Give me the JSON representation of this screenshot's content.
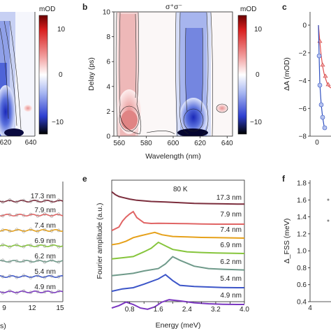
{
  "panels": {
    "a": {
      "id": "",
      "xticks": [
        "620",
        "640"
      ],
      "cb_unit": "mOD",
      "cb_ticks": [
        "10",
        "0",
        "−10"
      ]
    },
    "b": {
      "id": "b",
      "title": "σ⁺σ⁻",
      "xlabel": "Wavelength (nm)",
      "ylabel": "Delay (ps)",
      "xticks": [
        "560",
        "580",
        "600",
        "620",
        "640"
      ],
      "yticks": [
        "0",
        "2",
        "4",
        "6",
        "8",
        "10"
      ],
      "cb_unit": "mOD",
      "cb_ticks": [
        "10",
        "0",
        "−10"
      ]
    },
    "c": {
      "id": "c",
      "ylabel": "ΔA (mOD)",
      "yticks": [
        "0",
        "−2",
        "−4",
        "−6",
        "−8"
      ],
      "xticks": [
        "0"
      ]
    },
    "d": {
      "xticks": [
        "9",
        "12",
        "15"
      ],
      "xlabel_fragment": "s)"
    },
    "e": {
      "id": "e",
      "annotation": "80 K",
      "xlabel": "Energy (meV)",
      "ylabel": "Fourier amplitude (a.u.)",
      "xticks": [
        "0.8",
        "1.2",
        "1.6",
        "2.0",
        "2.4",
        "2.8",
        "3.2",
        "3.6",
        "4.0"
      ]
    },
    "f": {
      "id": "f",
      "ylabel": "Δ_FSS (meV)",
      "yticks": [
        "1.8",
        "1.6",
        "1.4",
        "1.2",
        "1.0",
        "0.8",
        "0.6",
        "0.4"
      ],
      "xticks": [
        "4"
      ]
    }
  },
  "size_labels": [
    "17.3 nm",
    "7.9 nm",
    "7.4 nm",
    "6.9 nm",
    "6.2 nm",
    "5.4 nm",
    "4.9 nm"
  ],
  "colors": {
    "17.3 nm": "#7b2d3c",
    "7.9 nm": "#e06464",
    "7.4 nm": "#e6a11a",
    "6.9 nm": "#86c53c",
    "6.2 nm": "#6f9a8a",
    "5.4 nm": "#3c55c8",
    "4.9 nm": "#7a36c0"
  },
  "chart_data": [
    {
      "panel": "b",
      "type": "heatmap",
      "title": "σ⁺σ⁻",
      "xlabel": "Wavelength (nm)",
      "ylabel": "Delay (ps)",
      "xlim": [
        556,
        644
      ],
      "ylim": [
        0,
        10
      ],
      "colorbar_label": "mOD",
      "colorbar_range": [
        -15,
        15
      ]
    },
    {
      "panel": "e",
      "type": "line",
      "xlabel": "Energy (meV)",
      "ylabel": "Fourier amplitude (a.u.)",
      "xlim": [
        0.3,
        4.0
      ],
      "series": [
        {
          "name": "17.3 nm",
          "x": [
            0.3,
            0.4,
            0.5,
            0.6,
            0.8,
            1.0,
            1.4,
            1.8,
            2.2,
            2.6,
            3.0,
            3.4,
            3.8,
            4.0
          ],
          "y": [
            0.98,
            0.86,
            0.78,
            0.74,
            0.67,
            0.62,
            0.57,
            0.55,
            0.52,
            0.49,
            0.48,
            0.47,
            0.46,
            0.46
          ]
        },
        {
          "name": "7.9 nm",
          "x": [
            0.3,
            0.5,
            0.6,
            0.7,
            0.8,
            0.9,
            1.0,
            1.2,
            1.4,
            1.6,
            2.0,
            2.4,
            2.8,
            3.2,
            3.6,
            4.0
          ],
          "y": [
            0.05,
            0.2,
            0.45,
            0.62,
            0.75,
            0.85,
            0.6,
            0.38,
            0.35,
            0.36,
            0.35,
            0.34,
            0.33,
            0.32,
            0.32,
            0.32
          ]
        },
        {
          "name": "7.4 nm",
          "x": [
            0.3,
            0.5,
            0.7,
            0.9,
            1.1,
            1.3,
            1.5,
            1.7,
            2.0,
            2.4,
            2.8,
            3.2,
            3.6,
            4.0
          ],
          "y": [
            0.1,
            0.15,
            0.25,
            0.4,
            0.48,
            0.55,
            0.62,
            0.52,
            0.45,
            0.43,
            0.41,
            0.4,
            0.39,
            0.38
          ]
        },
        {
          "name": "6.9 nm",
          "x": [
            0.3,
            0.6,
            0.9,
            1.2,
            1.4,
            1.6,
            1.8,
            2.0,
            2.4,
            2.8,
            3.2,
            3.6,
            4.0
          ],
          "y": [
            0.15,
            0.2,
            0.25,
            0.45,
            0.6,
            0.85,
            0.7,
            0.55,
            0.45,
            0.42,
            0.4,
            0.39,
            0.38
          ]
        },
        {
          "name": "6.2 nm",
          "x": [
            0.3,
            0.6,
            0.9,
            1.2,
            1.6,
            1.8,
            2.0,
            2.2,
            2.6,
            3.0,
            3.4,
            3.8,
            4.0
          ],
          "y": [
            0.15,
            0.2,
            0.25,
            0.35,
            0.45,
            0.65,
            0.95,
            0.8,
            0.55,
            0.45,
            0.42,
            0.4,
            0.39
          ]
        },
        {
          "name": "5.4 nm",
          "x": [
            0.3,
            0.6,
            0.9,
            1.2,
            1.6,
            1.8,
            2.0,
            2.2,
            2.6,
            3.0,
            3.4,
            3.8,
            4.0
          ],
          "y": [
            0.2,
            0.3,
            0.35,
            0.5,
            0.72,
            0.9,
            0.65,
            0.45,
            0.4,
            0.38,
            0.36,
            0.35,
            0.35
          ]
        },
        {
          "name": "4.9 nm",
          "x": [
            0.3,
            0.5,
            0.7,
            0.9,
            1.1,
            1.3,
            1.5,
            1.7,
            1.9,
            2.2,
            2.6,
            3.0,
            3.4,
            3.8,
            4.0
          ],
          "y": [
            0.2,
            0.3,
            0.45,
            0.35,
            0.2,
            0.15,
            0.25,
            0.45,
            0.55,
            0.5,
            0.42,
            0.38,
            0.36,
            0.35,
            0.35
          ]
        }
      ]
    }
  ]
}
